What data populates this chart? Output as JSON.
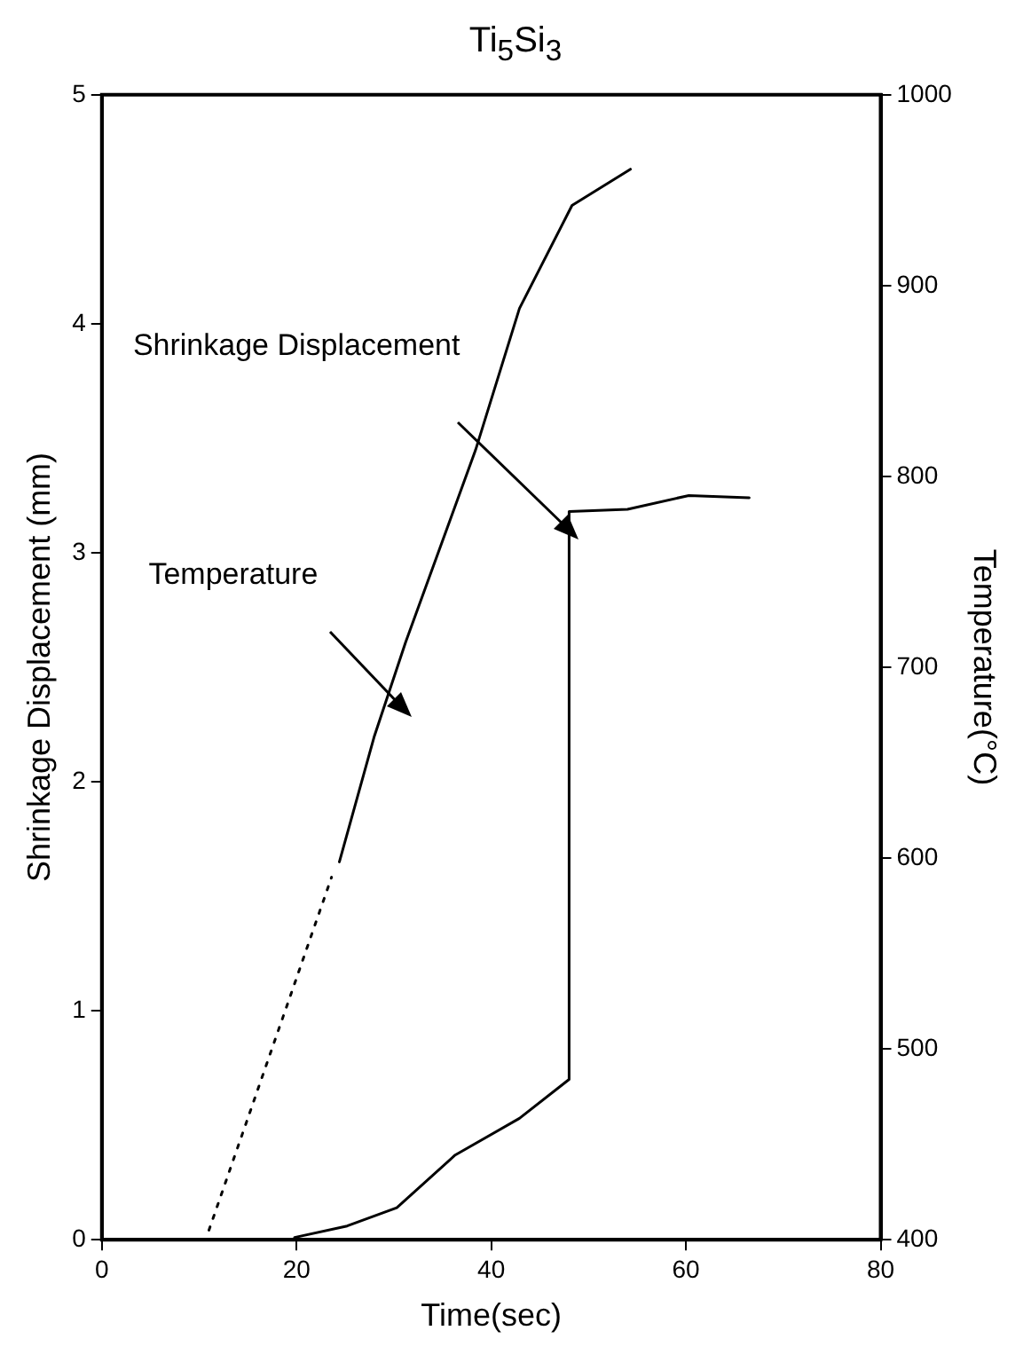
{
  "chart_data": {
    "type": "line",
    "title": "Ti$_{5}$Si$_{3}$",
    "xlabel": "Time(sec)",
    "ylabel": "Shrinkage Displacement (mm)",
    "y2label": "Temperature(°C)",
    "xlim": [
      0,
      80
    ],
    "xticks": [
      0,
      20,
      40,
      60,
      80
    ],
    "ylim": [
      0,
      5
    ],
    "yticks": [
      0,
      1,
      2,
      3,
      4,
      5
    ],
    "y2lim": [
      400,
      1000
    ],
    "y2ticks": [
      400,
      500,
      600,
      700,
      800,
      900,
      1000
    ],
    "grid": false,
    "legend": false,
    "marker": "none",
    "annotations": [
      "Shrinkage Displacement",
      "Temperature"
    ],
    "series": [
      {
        "color": "#000000",
        "line_style": "solid",
        "x": [
          19.8,
          25.2,
          30.3,
          36.3,
          42.9,
          48,
          48,
          54,
          60.3,
          66.5
        ],
        "values": [
          0.01,
          0.06,
          0.14,
          0.37,
          0.53,
          0.7,
          3.18,
          3.19,
          3.25,
          3.24
        ]
      },
      {
        "color": "#000000",
        "axis": "y2",
        "line_style": "dotted",
        "x": [
          11,
          23.6
        ],
        "values": [
          405,
          590
        ]
      },
      {
        "color": "#000000",
        "axis": "y2",
        "line_style": "solid",
        "x": [
          24.4,
          28,
          31.2,
          38.4,
          42.9,
          48.3,
          54.3
        ],
        "values": [
          598,
          664,
          713,
          814,
          888,
          942,
          961
        ]
      }
    ]
  }
}
